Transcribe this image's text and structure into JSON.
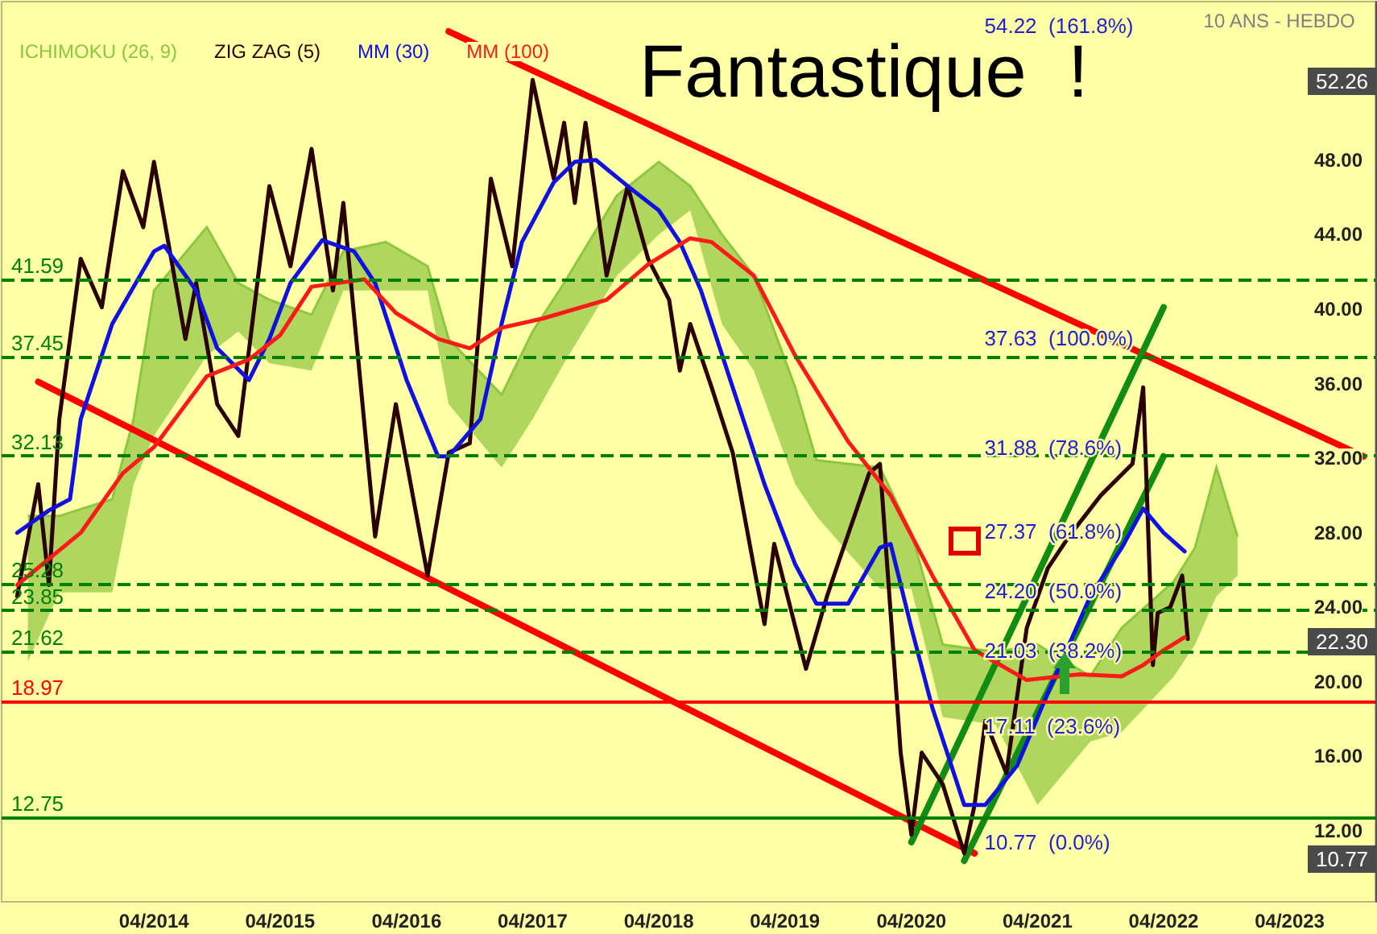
{
  "chart_data": {
    "type": "line",
    "title": "Fantastique  !",
    "subtitle": "10 ANS - HEBDO",
    "legend": "top left",
    "xlim": [
      "2013-01-15",
      "2023-12-05"
    ],
    "ylim": [
      8.2,
      56.5
    ],
    "xticks": [
      {
        "value": "2014-04",
        "label": "04/2014"
      },
      {
        "value": "2015-04",
        "label": "04/2015"
      },
      {
        "value": "2016-04",
        "label": "04/2016"
      },
      {
        "value": "2017-04",
        "label": "04/2017"
      },
      {
        "value": "2018-04",
        "label": "04/2018"
      },
      {
        "value": "2019-04",
        "label": "04/2019"
      },
      {
        "value": "2020-04",
        "label": "04/2020"
      },
      {
        "value": "2021-04",
        "label": "04/2021"
      },
      {
        "value": "2022-04",
        "label": "04/2022"
      },
      {
        "value": "2023-04",
        "label": "04/2023"
      }
    ],
    "yticks": [
      {
        "value": 12,
        "label": "12.00"
      },
      {
        "value": 16,
        "label": "16.00"
      },
      {
        "value": 20,
        "label": "20.00"
      },
      {
        "value": 24,
        "label": "24.00"
      },
      {
        "value": 28,
        "label": "28.00"
      },
      {
        "value": 32,
        "label": "32.00"
      },
      {
        "value": 36,
        "label": "36.00"
      },
      {
        "value": 40,
        "label": "40.00"
      },
      {
        "value": 44,
        "label": "44.00"
      },
      {
        "value": 48,
        "label": "48.00"
      }
    ],
    "series": [
      {
        "name": "ICHIMOKU (26, 9)",
        "color": "#8dc63f",
        "x": [
          "2013-04",
          "2013-07",
          "2013-12",
          "2014-02",
          "2014-04",
          "2014-09",
          "2014-12",
          "2015-03",
          "2015-07",
          "2015-10",
          "2016-02",
          "2016-06",
          "2016-08",
          "2017-01",
          "2017-04",
          "2017-07",
          "2017-12",
          "2018-04",
          "2018-07",
          "2018-10",
          "2019-01",
          "2019-05",
          "2019-07",
          "2020-01",
          "2020-04",
          "2020-07",
          "2020-12",
          "2021-04",
          "2021-09",
          "2021-12",
          "2022-05",
          "2022-07",
          "2022-09",
          "2022-11"
        ],
        "values": [
          28.9,
          28.9,
          29.8,
          34.1,
          41.0,
          44.4,
          41.4,
          40.5,
          39.7,
          43.1,
          43.6,
          42.3,
          38.4,
          35.4,
          38.8,
          41.4,
          46.1,
          47.9,
          46.6,
          44.0,
          41.8,
          35.8,
          31.9,
          31.5,
          28.0,
          22.0,
          21.6,
          22.0,
          20.3,
          22.9,
          25.4,
          27.2,
          31.5,
          27.8
        ],
        "upper": [
          28.9,
          28.9,
          29.8,
          34.1,
          41.0,
          44.4,
          41.4,
          40.5,
          39.7,
          43.1,
          43.6,
          42.3,
          38.4,
          35.4,
          38.8,
          41.4,
          46.1,
          47.9,
          46.6,
          44.0,
          41.8,
          35.8,
          31.9,
          31.5,
          28.0,
          22.0,
          21.6,
          22.0,
          20.3,
          22.9,
          25.4,
          27.2,
          31.5,
          27.8
        ],
        "lower": [
          21.1,
          24.8,
          24.8,
          30.6,
          33.2,
          37.5,
          38.8,
          37.1,
          36.7,
          41.0,
          41.0,
          41.0,
          34.9,
          31.5,
          34.1,
          37.1,
          41.8,
          44.0,
          45.3,
          39.2,
          36.7,
          30.6,
          28.9,
          25.0,
          25.0,
          18.1,
          17.7,
          13.4,
          16.8,
          17.3,
          20.3,
          22.0,
          24.6,
          25.7
        ]
      },
      {
        "name": "ZIG ZAG (5)",
        "color": "#2b0000",
        "x": [
          "2013-03",
          "2013-05",
          "2013-06",
          "2013-07",
          "2013-09",
          "2013-11",
          "2014-01",
          "2014-03",
          "2014-04",
          "2014-07",
          "2014-08",
          "2014-10",
          "2014-12",
          "2015-03",
          "2015-05",
          "2015-07",
          "2015-09",
          "2015-10",
          "2016-01",
          "2016-03",
          "2016-06",
          "2016-08",
          "2016-10",
          "2016-12",
          "2017-02",
          "2017-04",
          "2017-06",
          "2017-07",
          "2017-08",
          "2017-09",
          "2017-11",
          "2018-01",
          "2018-03",
          "2018-05",
          "2018-06",
          "2018-07",
          "2018-09",
          "2018-11",
          "2019-02",
          "2019-03",
          "2019-06",
          "2019-08",
          "2019-09",
          "2019-12",
          "2020-01",
          "2020-03",
          "2020-04",
          "2020-05",
          "2020-07",
          "2020-09",
          "2020-10",
          "2020-11",
          "2021-01",
          "2021-03",
          "2021-05",
          "2021-07",
          "2021-10",
          "2022-01",
          "2022-02",
          "2022-03-01",
          "2022-03-15",
          "2022-04-20",
          "2022-05-25",
          "2022-06-10"
        ],
        "values": [
          24.6,
          30.6,
          25.2,
          34.1,
          42.7,
          40.1,
          47.4,
          44.4,
          47.9,
          38.4,
          41.4,
          34.9,
          33.2,
          46.6,
          42.3,
          48.6,
          41.0,
          45.7,
          27.8,
          34.9,
          25.7,
          32.3,
          32.8,
          47.0,
          42.3,
          52.3,
          47.0,
          50.0,
          45.7,
          50.0,
          41.8,
          46.6,
          42.7,
          40.5,
          36.7,
          39.2,
          35.8,
          32.3,
          23.1,
          27.4,
          20.7,
          24.6,
          26.3,
          31.2,
          31.7,
          16.2,
          11.8,
          16.2,
          14.5,
          10.8,
          13.4,
          17.9,
          15.1,
          22.9,
          26.1,
          27.8,
          30.0,
          31.7,
          35.8,
          20.9,
          23.7,
          24.0,
          25.7,
          22.3
        ]
      },
      {
        "name": "MM (30)",
        "color": "#1010e0",
        "x": [
          "2013-03",
          "2013-06",
          "2013-08",
          "2013-09",
          "2013-12",
          "2014-04",
          "2014-05",
          "2014-08",
          "2014-10",
          "2015-01",
          "2015-03",
          "2015-05",
          "2015-08",
          "2015-11",
          "2016-01",
          "2016-04",
          "2016-07",
          "2016-08",
          "2016-11",
          "2017-01",
          "2017-03",
          "2017-06",
          "2017-08",
          "2017-10",
          "2018-01",
          "2018-04",
          "2018-06",
          "2018-08",
          "2018-11",
          "2019-02",
          "2019-05",
          "2019-07",
          "2019-10",
          "2020-01",
          "2020-02",
          "2020-04",
          "2020-06",
          "2020-09",
          "2020-11",
          "2021-02",
          "2021-05",
          "2021-09",
          "2021-12",
          "2022-02",
          "2022-04",
          "2022-06"
        ],
        "values": [
          28.0,
          29.2,
          29.8,
          34.1,
          39.2,
          43.1,
          43.4,
          41.0,
          37.9,
          36.2,
          38.4,
          41.4,
          43.7,
          43.1,
          41.4,
          36.2,
          32.1,
          32.1,
          34.1,
          39.2,
          43.6,
          46.8,
          47.9,
          48.0,
          46.6,
          45.3,
          43.6,
          41.0,
          35.8,
          30.6,
          26.3,
          24.2,
          24.2,
          27.2,
          27.4,
          22.9,
          18.6,
          13.4,
          13.4,
          15.5,
          19.4,
          24.6,
          27.2,
          29.3,
          28.0,
          27.0
        ]
      },
      {
        "name": "MM (100)",
        "color": "#ff1a1a",
        "x": [
          "2013-03",
          "2013-09",
          "2014-01",
          "2014-04",
          "2014-09",
          "2015-01",
          "2015-04",
          "2015-07",
          "2015-12",
          "2016-03",
          "2016-07",
          "2016-10",
          "2017-01",
          "2017-05",
          "2017-11",
          "2018-03",
          "2018-07",
          "2018-09",
          "2019-01",
          "2019-05",
          "2019-10",
          "2020-02",
          "2020-06",
          "2020-10",
          "2021-03",
          "2021-08",
          "2021-12",
          "2022-02",
          "2022-04",
          "2022-06"
        ],
        "values": [
          25.2,
          28.0,
          31.2,
          32.6,
          36.4,
          37.3,
          38.6,
          41.2,
          41.6,
          39.8,
          38.4,
          37.9,
          39.0,
          39.5,
          40.5,
          42.4,
          43.8,
          43.6,
          41.8,
          37.5,
          32.9,
          30.0,
          25.7,
          21.7,
          20.1,
          20.4,
          20.3,
          20.9,
          21.7,
          22.4
        ]
      },
      {
        "color": "#ff0000",
        "x": [
          "2016-08",
          "2023-11"
        ],
        "values": [
          54.9,
          32.1
        ]
      },
      {
        "color": "#ff0000",
        "x": [
          "2013-05",
          "2020-10"
        ],
        "values": [
          36.1,
          10.8
        ]
      },
      {
        "color": "#128c12",
        "x": [
          "2020-04",
          "2022-04"
        ],
        "values": [
          11.4,
          40.1
        ]
      },
      {
        "color": "#128c12",
        "x": [
          "2020-09",
          "2022-04"
        ],
        "values": [
          10.4,
          32.1
        ]
      }
    ],
    "ref_lines": [
      {
        "axis": "y",
        "value": 41.59,
        "label": "41.59",
        "color": "#008000",
        "line_style": "dashed"
      },
      {
        "axis": "y",
        "value": 37.45,
        "label": "37.45",
        "color": "#008000",
        "line_style": "dashed"
      },
      {
        "axis": "y",
        "value": 32.13,
        "label": "32.13",
        "color": "#008000",
        "line_style": "dashed"
      },
      {
        "axis": "y",
        "value": 25.28,
        "label": "25.28",
        "color": "#008000",
        "line_style": "dashed"
      },
      {
        "axis": "y",
        "value": 23.85,
        "label": "23.85",
        "color": "#008000",
        "line_style": "dashed"
      },
      {
        "axis": "y",
        "value": 21.62,
        "label": "21.62",
        "color": "#008000",
        "line_style": "dashed"
      },
      {
        "axis": "y",
        "value": 18.97,
        "label": "18.97",
        "color": "#ff0000",
        "line_style": "solid"
      },
      {
        "axis": "y",
        "value": 12.75,
        "label": "12.75",
        "color": "#008000",
        "line_style": "solid"
      }
    ],
    "annotations": [
      "54.22  (161.8%)",
      "37.63  (100.0%)",
      "31.88  (78.6%)",
      "27.37  (61.8%)",
      "24.20  (50.0%)",
      "21.03  (38.2%)",
      "17.11  (23.6%)",
      "10.77  (0.0%)",
      "52.26",
      "22.30",
      "10.77"
    ]
  }
}
